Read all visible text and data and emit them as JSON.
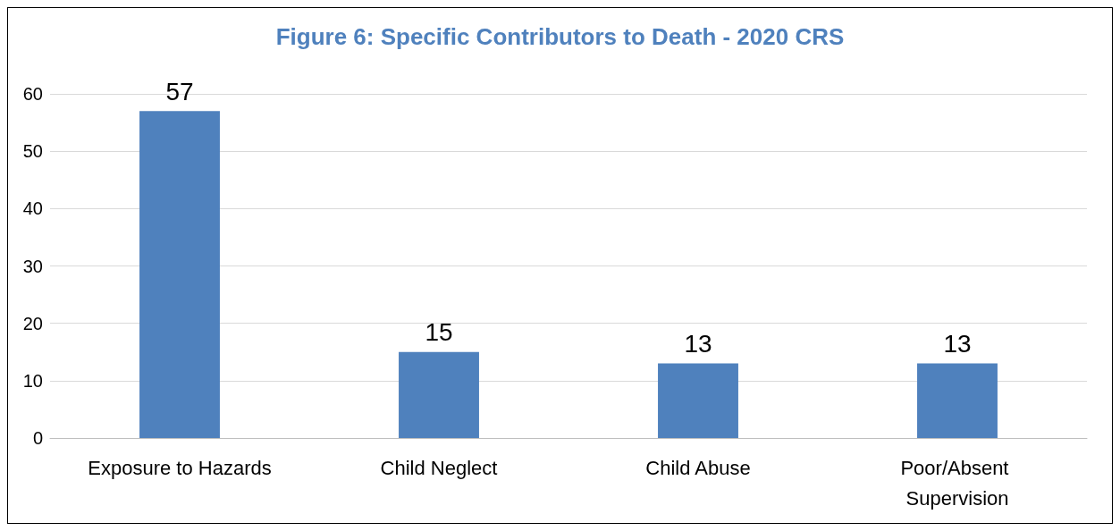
{
  "chart_data": {
    "type": "bar",
    "title": "Figure 6: Specific Contributors to Death - 2020 CRS",
    "categories": [
      "Exposure to Hazards",
      "Child Neglect",
      "Child Abuse",
      "Poor/Absent Supervision"
    ],
    "values": [
      57,
      15,
      13,
      13
    ],
    "color": "#4f81bd",
    "ylim": [
      0,
      60
    ],
    "yticks": [
      0,
      10,
      20,
      30,
      40,
      50,
      60
    ],
    "grid": "y",
    "data_labels": true
  }
}
